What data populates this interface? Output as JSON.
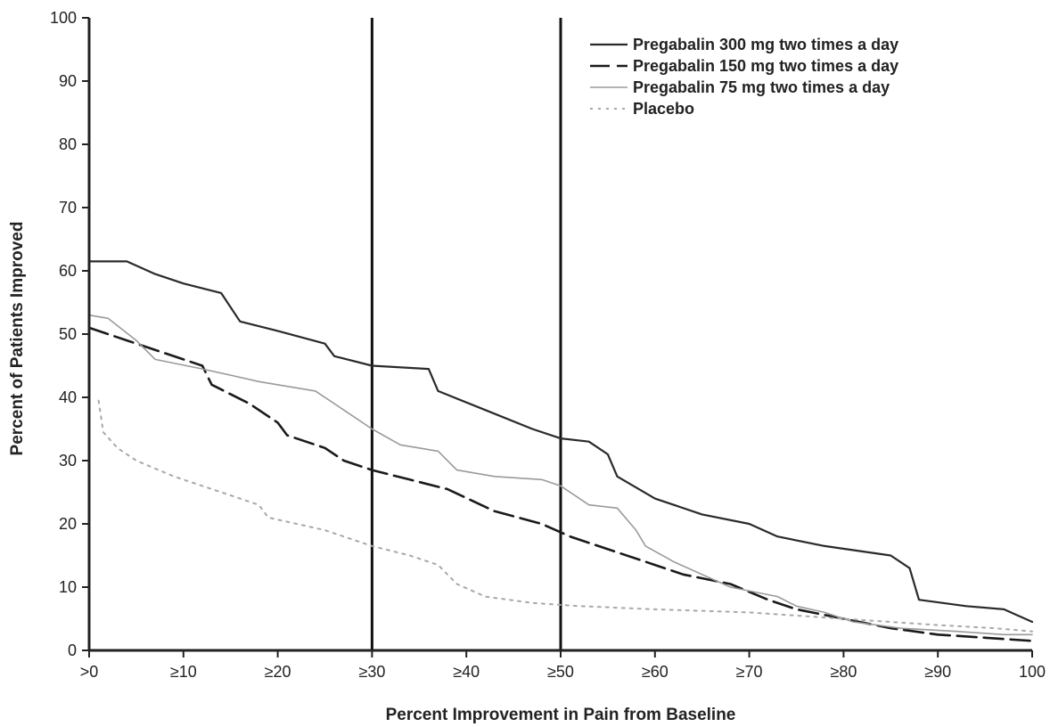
{
  "chart_data": {
    "type": "line",
    "title": "",
    "xlabel": "Percent Improvement in Pain from Baseline",
    "ylabel": "Percent of Patients Improved",
    "xlim": [
      0,
      100
    ],
    "ylim": [
      0,
      100
    ],
    "x_ticks": [
      ">0",
      "≥10",
      "≥20",
      "≥30",
      "≥40",
      "≥50",
      "≥60",
      "≥70",
      "≥80",
      "≥90",
      "100"
    ],
    "x_tick_values": [
      0,
      10,
      20,
      30,
      40,
      50,
      60,
      70,
      80,
      90,
      100
    ],
    "y_ticks": [
      "0",
      "10",
      "20",
      "30",
      "40",
      "50",
      "60",
      "70",
      "80",
      "90",
      "100"
    ],
    "y_tick_values": [
      0,
      10,
      20,
      30,
      40,
      50,
      60,
      70,
      80,
      90,
      100
    ],
    "reference_lines_x": [
      30,
      50
    ],
    "legend_position": "top-right",
    "grid": false,
    "series": [
      {
        "name": "Pregabalin 300 mg two times a day",
        "style": "solid-dark",
        "color": "#2a2a2a",
        "points": [
          [
            0,
            61.5
          ],
          [
            4,
            61.5
          ],
          [
            7,
            59.5
          ],
          [
            10,
            58
          ],
          [
            14,
            56.5
          ],
          [
            16,
            52
          ],
          [
            20,
            50.5
          ],
          [
            25,
            48.5
          ],
          [
            26,
            46.5
          ],
          [
            30,
            45
          ],
          [
            36,
            44.5
          ],
          [
            37,
            41
          ],
          [
            42,
            38
          ],
          [
            47,
            35
          ],
          [
            50,
            33.5
          ],
          [
            53,
            33
          ],
          [
            55,
            31
          ],
          [
            56,
            27.5
          ],
          [
            60,
            24
          ],
          [
            65,
            21.5
          ],
          [
            70,
            20
          ],
          [
            73,
            18
          ],
          [
            78,
            16.5
          ],
          [
            85,
            15
          ],
          [
            87,
            13
          ],
          [
            88,
            8
          ],
          [
            93,
            7
          ],
          [
            97,
            6.5
          ],
          [
            100,
            4.5
          ]
        ]
      },
      {
        "name": "Pregabalin 150 mg two times a day",
        "style": "dashed-dark",
        "color": "#1a1a1a",
        "points": [
          [
            0,
            51
          ],
          [
            4,
            49
          ],
          [
            8,
            47
          ],
          [
            12,
            45
          ],
          [
            13,
            42
          ],
          [
            17,
            39
          ],
          [
            20,
            36
          ],
          [
            21,
            34
          ],
          [
            25,
            32
          ],
          [
            27,
            30
          ],
          [
            30,
            28.5
          ],
          [
            34,
            27
          ],
          [
            38,
            25.5
          ],
          [
            43,
            22
          ],
          [
            48,
            20
          ],
          [
            51,
            18
          ],
          [
            53,
            17
          ],
          [
            55,
            16
          ],
          [
            60,
            13.5
          ],
          [
            63,
            12
          ],
          [
            68,
            10.5
          ],
          [
            72,
            8
          ],
          [
            75,
            6.5
          ],
          [
            80,
            5
          ],
          [
            85,
            3.5
          ],
          [
            90,
            2.5
          ],
          [
            95,
            2
          ],
          [
            100,
            1.5
          ]
        ]
      },
      {
        "name": "Pregabalin 75 mg two times a day",
        "style": "solid-light",
        "color": "#9a9a9a",
        "points": [
          [
            0,
            53
          ],
          [
            2,
            52.5
          ],
          [
            5,
            49
          ],
          [
            7,
            46
          ],
          [
            12,
            44.5
          ],
          [
            15,
            43.5
          ],
          [
            18,
            42.5
          ],
          [
            24,
            41
          ],
          [
            27,
            38
          ],
          [
            30,
            35
          ],
          [
            33,
            32.5
          ],
          [
            37,
            31.5
          ],
          [
            39,
            28.5
          ],
          [
            43,
            27.5
          ],
          [
            48,
            27
          ],
          [
            50,
            26
          ],
          [
            53,
            23
          ],
          [
            56,
            22.5
          ],
          [
            58,
            19
          ],
          [
            59,
            16.5
          ],
          [
            62,
            14
          ],
          [
            65,
            12
          ],
          [
            68,
            10
          ],
          [
            73,
            8.5
          ],
          [
            75,
            7
          ],
          [
            78,
            6
          ],
          [
            81,
            4.5
          ],
          [
            86,
            3.5
          ],
          [
            92,
            3
          ],
          [
            97,
            2.5
          ],
          [
            100,
            2.5
          ]
        ]
      },
      {
        "name": "Placebo",
        "style": "dotted-light",
        "color": "#a8a8a8",
        "points": [
          [
            1,
            39.5
          ],
          [
            1.5,
            34.5
          ],
          [
            3,
            32
          ],
          [
            5,
            30
          ],
          [
            9,
            27.5
          ],
          [
            15,
            24.5
          ],
          [
            18,
            23
          ],
          [
            19,
            21
          ],
          [
            25,
            19
          ],
          [
            30,
            16.5
          ],
          [
            34,
            15
          ],
          [
            37,
            13.5
          ],
          [
            39,
            10.5
          ],
          [
            42,
            8.5
          ],
          [
            47,
            7.5
          ],
          [
            52,
            7
          ],
          [
            60,
            6.5
          ],
          [
            70,
            6
          ],
          [
            80,
            5
          ],
          [
            90,
            4
          ],
          [
            96,
            3.5
          ],
          [
            100,
            3
          ]
        ]
      }
    ]
  }
}
